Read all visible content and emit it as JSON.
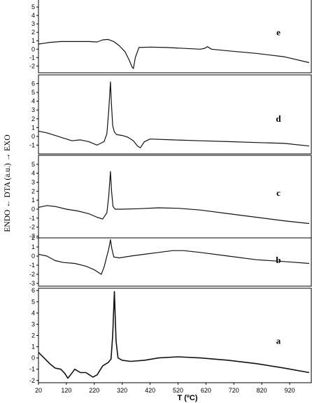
{
  "chart_data": {
    "type": "line",
    "xlabel": "T (ºC)",
    "ylabel": "ENDO ← DTA (a.u.) → EXO",
    "xlim": [
      20,
      1000
    ],
    "xticks": [
      20,
      120,
      220,
      320,
      420,
      520,
      620,
      720,
      820,
      920
    ],
    "grid": false,
    "panels": [
      {
        "label": "e",
        "ylim": [
          -2.8,
          6
        ],
        "yticks": [
          -2,
          -1,
          0,
          1,
          2,
          3,
          4,
          5
        ],
        "series": [
          {
            "x": [
              20,
              40,
              60,
              100,
              150,
              200,
              230,
              250,
              270,
              290,
              310,
              330,
              345,
              355,
              360,
              367,
              380,
              420,
              480,
              600,
              615,
              625,
              640,
              700,
              800,
              900,
              990
            ],
            "y": [
              0.6,
              0.7,
              0.8,
              0.9,
              0.9,
              0.9,
              0.85,
              1.1,
              1.15,
              0.9,
              0.4,
              -0.3,
              -1.3,
              -2.1,
              -2.3,
              -1.0,
              0.2,
              0.25,
              0.2,
              0.0,
              0.1,
              0.3,
              0.0,
              -0.2,
              -0.5,
              -0.9,
              -1.6
            ]
          }
        ]
      },
      {
        "label": "d",
        "ylim": [
          -2,
          7
        ],
        "yticks": [
          -1,
          0,
          1,
          2,
          3,
          4,
          5,
          6
        ],
        "series": [
          {
            "x": [
              20,
              50,
              80,
              110,
              140,
              170,
              200,
              230,
              255,
              265,
              272,
              278,
              281,
              286,
              292,
              300,
              320,
              340,
              360,
              375,
              385,
              400,
              420,
              500,
              600,
              700,
              800,
              900,
              990
            ],
            "y": [
              0.6,
              0.4,
              0.1,
              -0.2,
              -0.5,
              -0.4,
              -0.6,
              -1.0,
              -0.6,
              0.3,
              3.0,
              6.2,
              4.0,
              1.2,
              0.5,
              0.2,
              0.1,
              -0.1,
              -0.5,
              -1.1,
              -1.3,
              -0.6,
              -0.3,
              -0.4,
              -0.5,
              -0.6,
              -0.7,
              -0.8,
              -1.1
            ]
          }
        ]
      },
      {
        "label": "c",
        "ylim": [
          -3.2,
          6
        ],
        "yticks": [
          -3,
          -2,
          -1,
          0,
          1,
          2,
          3,
          4,
          5
        ],
        "series": [
          {
            "x": [
              20,
              50,
              80,
              120,
              160,
              200,
              230,
              250,
              265,
              272,
              278,
              282,
              287,
              295,
              320,
              380,
              450,
              520,
              600,
              700,
              800,
              900,
              990
            ],
            "y": [
              0.2,
              0.4,
              0.3,
              0.0,
              -0.2,
              -0.5,
              -0.9,
              -1.1,
              -0.4,
              1.5,
              4.2,
              2.0,
              0.3,
              0.0,
              0.0,
              0.05,
              0.15,
              0.1,
              -0.1,
              -0.5,
              -0.9,
              -1.3,
              -1.6
            ]
          }
        ]
      },
      {
        "label": "b",
        "ylim": [
          -3.3,
          2
        ],
        "yticks": [
          -3,
          -2,
          -1,
          0,
          1,
          2
        ],
        "series": [
          {
            "x": [
              20,
              50,
              80,
              110,
              150,
              190,
              220,
              245,
              255,
              265,
              272,
              278,
              283,
              290,
              310,
              350,
              400,
              450,
              500,
              540,
              600,
              700,
              800,
              900,
              990
            ],
            "y": [
              0.2,
              0.0,
              -0.5,
              -0.7,
              -0.8,
              -1.1,
              -1.5,
              -2.0,
              -1.2,
              0.0,
              0.8,
              1.8,
              0.8,
              -0.1,
              -0.2,
              0.0,
              0.2,
              0.4,
              0.6,
              0.6,
              0.4,
              0.0,
              -0.4,
              -0.6,
              -0.8
            ]
          }
        ]
      },
      {
        "label": "a",
        "ylim": [
          -2.2,
          6.2
        ],
        "yticks": [
          -2,
          -1,
          0,
          1,
          2,
          3,
          4,
          5,
          6
        ],
        "series": [
          {
            "x": [
              20,
              40,
              60,
              80,
              100,
              115,
              125,
              135,
              150,
              170,
              190,
              215,
              230,
              250,
              270,
              280,
              286,
              292,
              298,
              305,
              320,
              350,
              400,
              450,
              520,
              600,
              700,
              800,
              900,
              990
            ],
            "y": [
              0.5,
              0.0,
              -0.5,
              -0.9,
              -1.0,
              -1.4,
              -1.8,
              -1.5,
              -1.0,
              -1.3,
              -1.3,
              -1.7,
              -1.5,
              -0.7,
              -0.4,
              -0.1,
              2.0,
              5.9,
              1.5,
              0.0,
              -0.2,
              -0.3,
              -0.2,
              0.0,
              0.1,
              0.0,
              -0.2,
              -0.5,
              -0.9,
              -1.3
            ]
          }
        ]
      }
    ]
  }
}
